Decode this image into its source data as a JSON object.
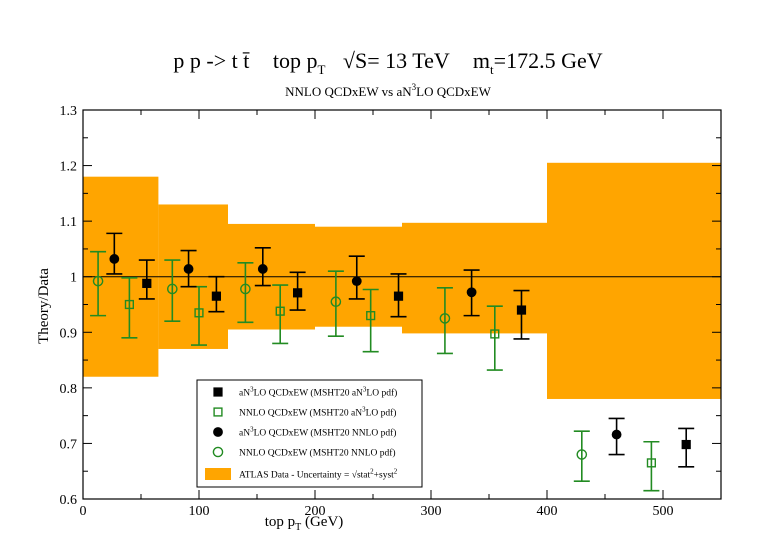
{
  "chart_data": {
    "type": "scatter",
    "title": "p p -> t t̄   top p_T  √S= 13 TeV  m_t=172.5 GeV",
    "title_parts": {
      "process": "p p -> t t̄",
      "observable": "top p",
      "observable_sub": "T",
      "energy": "√S= 13 TeV",
      "mass_label": "m",
      "mass_sub": "t",
      "mass_value": "=172.5 GeV"
    },
    "subtitle": "NNLO QCDxEW vs aN³LO QCDxEW",
    "subtitle_parts": {
      "a": "NNLO QCDxEW vs aN",
      "sup": "3",
      "b": "LO QCDxEW"
    },
    "xlabel": "top p_T (GeV)",
    "xlabel_parts": {
      "main": "top p",
      "sub": "T",
      "unit": " (GeV)"
    },
    "ylabel": "Theory/Data",
    "xlim": [
      0,
      550
    ],
    "ylim": [
      0.6,
      1.3
    ],
    "x_ticks": [
      0,
      100,
      200,
      300,
      400,
      500
    ],
    "y_ticks": [
      0.6,
      0.7,
      0.8,
      0.9,
      1.0,
      1.1,
      1.2,
      1.3
    ],
    "y_tick_labels": [
      "0.6",
      "0.7",
      "0.8",
      "0.9",
      "1",
      "1.1",
      "1.2",
      "1.3"
    ],
    "reference_line": 1.0,
    "band": {
      "name": "ATLAS Data - Uncertainty = √stat²+syst²",
      "color": "#ffa500",
      "bins": [
        {
          "x0": 0,
          "x1": 65,
          "lo": 0.82,
          "hi": 1.18
        },
        {
          "x0": 65,
          "x1": 125,
          "lo": 0.87,
          "hi": 1.13
        },
        {
          "x0": 125,
          "x1": 200,
          "lo": 0.905,
          "hi": 1.095
        },
        {
          "x0": 200,
          "x1": 275,
          "lo": 0.91,
          "hi": 1.09
        },
        {
          "x0": 275,
          "x1": 400,
          "lo": 0.898,
          "hi": 1.097
        },
        {
          "x0": 400,
          "x1": 550,
          "lo": 0.78,
          "hi": 1.205
        }
      ]
    },
    "series": [
      {
        "name": "aN³LO QCDxEW (MSHT20 aN³LO pdf)",
        "marker": "square-filled",
        "color": "#000000",
        "points": [
          {
            "x": 55,
            "y": 0.988,
            "lo": 0.96,
            "hi": 1.03
          },
          {
            "x": 115,
            "y": 0.965,
            "lo": 0.937,
            "hi": 1.0
          },
          {
            "x": 185,
            "y": 0.971,
            "lo": 0.94,
            "hi": 1.008
          },
          {
            "x": 272,
            "y": 0.965,
            "lo": 0.928,
            "hi": 1.005
          },
          {
            "x": 378,
            "y": 0.94,
            "lo": 0.888,
            "hi": 0.975
          },
          {
            "x": 520,
            "y": 0.698,
            "lo": 0.658,
            "hi": 0.727
          }
        ]
      },
      {
        "name": "NNLO QCDxEW (MSHT20 aN³LO pdf)",
        "marker": "square-open",
        "color": "#228b22",
        "points": [
          {
            "x": 40,
            "y": 0.95,
            "lo": 0.89,
            "hi": 0.998
          },
          {
            "x": 100,
            "y": 0.935,
            "lo": 0.877,
            "hi": 0.982
          },
          {
            "x": 170,
            "y": 0.938,
            "lo": 0.88,
            "hi": 0.985
          },
          {
            "x": 248,
            "y": 0.93,
            "lo": 0.865,
            "hi": 0.977
          },
          {
            "x": 355,
            "y": 0.897,
            "lo": 0.832,
            "hi": 0.947
          },
          {
            "x": 490,
            "y": 0.665,
            "lo": 0.615,
            "hi": 0.703
          }
        ]
      },
      {
        "name": "aN³LO QCDxEW (MSHT20 NNLO pdf)",
        "marker": "circle-filled",
        "color": "#000000",
        "points": [
          {
            "x": 27,
            "y": 1.032,
            "lo": 1.005,
            "hi": 1.078
          },
          {
            "x": 91,
            "y": 1.014,
            "lo": 0.982,
            "hi": 1.047
          },
          {
            "x": 155,
            "y": 1.014,
            "lo": 0.984,
            "hi": 1.052
          },
          {
            "x": 236,
            "y": 0.992,
            "lo": 0.96,
            "hi": 1.037
          },
          {
            "x": 335,
            "y": 0.972,
            "lo": 0.93,
            "hi": 1.012
          },
          {
            "x": 460,
            "y": 0.716,
            "lo": 0.68,
            "hi": 0.745
          }
        ]
      },
      {
        "name": "NNLO QCDxEW (MSHT20 NNLO pdf)",
        "marker": "circle-open",
        "color": "#228b22",
        "points": [
          {
            "x": 13,
            "y": 0.992,
            "lo": 0.93,
            "hi": 1.045
          },
          {
            "x": 77,
            "y": 0.978,
            "lo": 0.92,
            "hi": 1.03
          },
          {
            "x": 140,
            "y": 0.978,
            "lo": 0.918,
            "hi": 1.025
          },
          {
            "x": 218,
            "y": 0.955,
            "lo": 0.893,
            "hi": 1.01
          },
          {
            "x": 312,
            "y": 0.925,
            "lo": 0.862,
            "hi": 0.98
          },
          {
            "x": 430,
            "y": 0.68,
            "lo": 0.632,
            "hi": 0.722
          }
        ]
      }
    ],
    "legend": {
      "placement": "bottom-left",
      "entries": [
        {
          "pre": "aN",
          "sup": "3",
          "mid": "LO QCDxEW (MSHT20 aN",
          "sup2": "3",
          "post": "LO pdf)",
          "marker": "square-filled"
        },
        {
          "pre": "NNLO QCDxEW (MSHT20 aN",
          "sup": "3",
          "mid": "LO pdf)",
          "sup2": "",
          "post": "",
          "marker": "square-open"
        },
        {
          "pre": "aN",
          "sup": "3",
          "mid": "LO QCDxEW (MSHT20 NNLO pdf)",
          "sup2": "",
          "post": "",
          "marker": "circle-filled"
        },
        {
          "pre": "NNLO QCDxEW (MSHT20 NNLO pdf)",
          "sup": "",
          "mid": "",
          "sup2": "",
          "post": "",
          "marker": "circle-open"
        },
        {
          "pre": "ATLAS Data  -  Uncertainty = √stat",
          "sup": "2",
          "mid": "+syst",
          "sup2": "2",
          "post": "",
          "marker": "band"
        }
      ]
    }
  }
}
